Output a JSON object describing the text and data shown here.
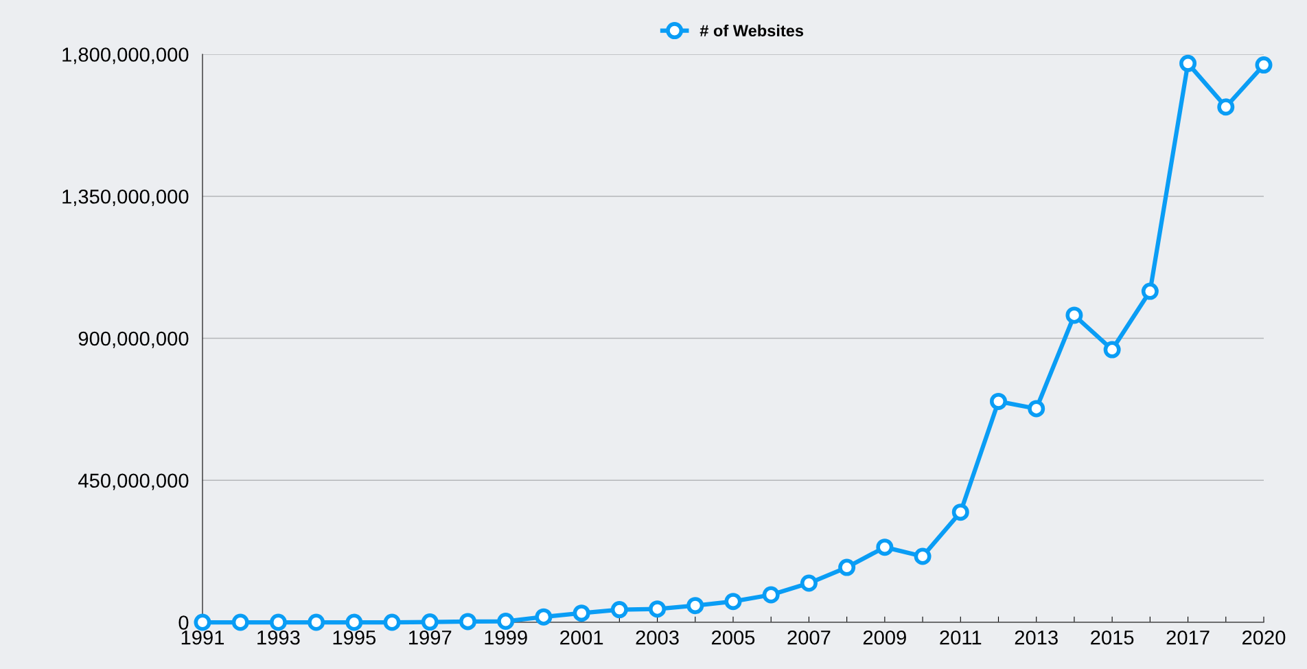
{
  "chart_data": {
    "type": "line",
    "categories": [
      "1991",
      null,
      "1993",
      null,
      "1995",
      null,
      "1997",
      null,
      "1999",
      null,
      "2001",
      null,
      "2003",
      null,
      "2005",
      null,
      "2007",
      null,
      "2009",
      null,
      "2011",
      null,
      "2013",
      null,
      "2015",
      null,
      "2017",
      null,
      "2020"
    ],
    "series": [
      {
        "name": "# of Websites",
        "color": "#0a9df5",
        "values": [
          0,
          0,
          0,
          0,
          0,
          0,
          1000000,
          2400000,
          3200000,
          17000000,
          29000000,
          40000000,
          42000000,
          53000000,
          66000000,
          87000000,
          124000000,
          174000000,
          238000000,
          209000000,
          349000000,
          700000000,
          677000000,
          973000000,
          864000000,
          1049000000,
          1771000000,
          1633000000,
          1766000000
        ]
      }
    ],
    "ylim": [
      0,
      1800000000
    ],
    "yticks": [
      {
        "value": 0,
        "label": "0"
      },
      {
        "value": 450000000,
        "label": "450,000,000"
      },
      {
        "value": 900000000,
        "label": "900,000,000"
      },
      {
        "value": 1350000000,
        "label": "1,350,000,000"
      },
      {
        "value": 1800000000,
        "label": "1,800,000,000"
      }
    ],
    "grid": "y",
    "legend": "top",
    "marker": "circle",
    "line_style": "solid"
  }
}
